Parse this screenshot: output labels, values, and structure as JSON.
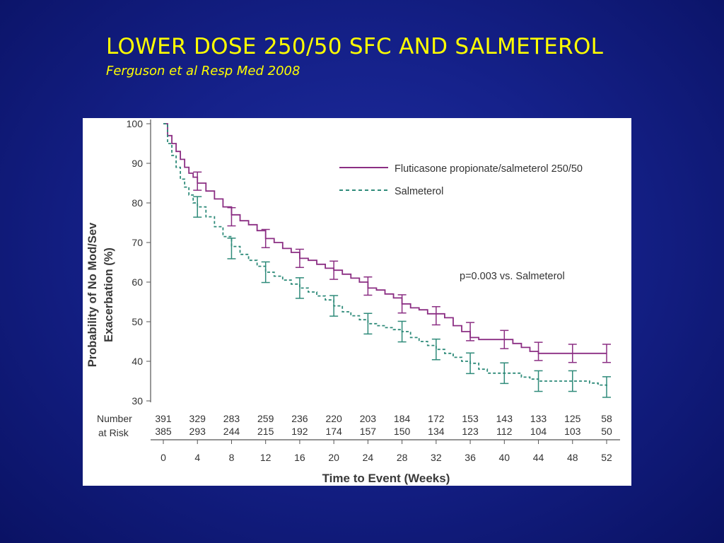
{
  "slide": {
    "title": "LOWER DOSE 250/50 SFC AND SALMETEROL",
    "subtitle": "Ferguson et al Resp Med 2008"
  },
  "colors": {
    "background": "#15218a",
    "title": "#ffff00",
    "fp_salm": "#8b2e83",
    "salm": "#2f8b7a"
  },
  "chart_data": {
    "type": "line",
    "title": "",
    "ylabel_line1": "Probability of No Mod/Sev",
    "ylabel_line2": "Exacerbation (%)",
    "xlabel": "Time to Event (Weeks)",
    "ylim": [
      30,
      100
    ],
    "xlim": [
      0,
      52
    ],
    "yticks": [
      30,
      40,
      50,
      60,
      70,
      80,
      90,
      100
    ],
    "xticks": [
      0,
      4,
      8,
      12,
      16,
      20,
      24,
      28,
      32,
      36,
      40,
      44,
      48,
      52
    ],
    "annotation": "p=0.003 vs. Salmeterol",
    "legend_position": "top-right",
    "series": [
      {
        "name": "Fluticasone propionate/salmeterol 250/50",
        "style": "solid",
        "color": "#8b2e83",
        "x": [
          0,
          0.5,
          1,
          1.5,
          2,
          2.5,
          3,
          3.5,
          4,
          5,
          6,
          7,
          8,
          9,
          10,
          11,
          12,
          13,
          14,
          15,
          16,
          17,
          18,
          19,
          20,
          21,
          22,
          23,
          24,
          25,
          26,
          27,
          28,
          29,
          30,
          31,
          32,
          33,
          34,
          35,
          36,
          37,
          38,
          39,
          40,
          41,
          42,
          43,
          44,
          45,
          46,
          47,
          48,
          49,
          50,
          51,
          52
        ],
        "y": [
          100,
          97,
          95,
          93,
          91,
          89,
          87.5,
          86.5,
          85,
          83,
          81,
          79,
          77,
          75.5,
          74.5,
          73,
          71,
          70,
          68.5,
          67.5,
          66,
          65.5,
          64.5,
          63.5,
          63,
          62,
          61,
          60,
          58.5,
          58,
          57,
          56,
          54.5,
          53.5,
          53,
          52,
          52,
          51,
          49,
          47.5,
          46,
          45.5,
          45.5,
          45.5,
          45.5,
          44.5,
          43.5,
          42.5,
          42,
          42,
          42,
          42,
          42,
          42,
          42,
          42,
          42
        ],
        "error_bars": {
          "x": [
            4,
            8,
            12,
            16,
            20,
            24,
            28,
            32,
            36,
            40,
            44,
            48,
            52
          ],
          "y": [
            85.5,
            76.5,
            71,
            66,
            63,
            59,
            54.5,
            51.5,
            47.5,
            45.5,
            42.5,
            42,
            42
          ],
          "half_width": 2.3
        },
        "at_risk": [
          391,
          329,
          283,
          259,
          236,
          220,
          203,
          184,
          172,
          153,
          143,
          133,
          125,
          58
        ]
      },
      {
        "name": "Salmeterol",
        "style": "dashed",
        "color": "#2f8b7a",
        "x": [
          0,
          0.5,
          1,
          1.5,
          2,
          2.5,
          3,
          3.5,
          4,
          5,
          6,
          7,
          8,
          9,
          10,
          11,
          12,
          13,
          14,
          15,
          16,
          17,
          18,
          19,
          20,
          21,
          22,
          23,
          24,
          25,
          26,
          27,
          28,
          29,
          30,
          31,
          32,
          33,
          34,
          35,
          36,
          37,
          38,
          39,
          40,
          41,
          42,
          43,
          44,
          45,
          46,
          47,
          48,
          49,
          50,
          51,
          52
        ],
        "y": [
          100,
          95,
          92,
          89,
          86,
          84,
          82,
          80,
          79,
          76.5,
          74,
          71.5,
          69,
          67,
          65.5,
          64,
          62.5,
          61.5,
          60.5,
          59.5,
          58.5,
          57.5,
          56.5,
          55.5,
          54,
          52.5,
          51.5,
          50.5,
          49.5,
          49,
          48.5,
          48,
          47.5,
          46,
          45,
          44,
          43,
          42,
          41,
          40,
          39.5,
          38,
          37,
          37,
          37,
          37,
          36,
          35.5,
          35,
          35,
          35,
          35,
          35,
          35,
          34.5,
          34,
          33.5
        ],
        "error_bars": {
          "x": [
            4,
            8,
            12,
            16,
            20,
            24,
            28,
            32,
            36,
            40,
            44,
            48,
            52
          ],
          "y": [
            79,
            68.5,
            62.5,
            58.5,
            54,
            49.5,
            47.5,
            43,
            39.5,
            37,
            35,
            35,
            33.5
          ],
          "half_width": 2.6
        },
        "at_risk": [
          385,
          293,
          244,
          215,
          192,
          174,
          157,
          150,
          134,
          123,
          112,
          104,
          103,
          50
        ]
      }
    ],
    "at_risk_label_line1": "Number",
    "at_risk_label_line2": "at Risk"
  }
}
